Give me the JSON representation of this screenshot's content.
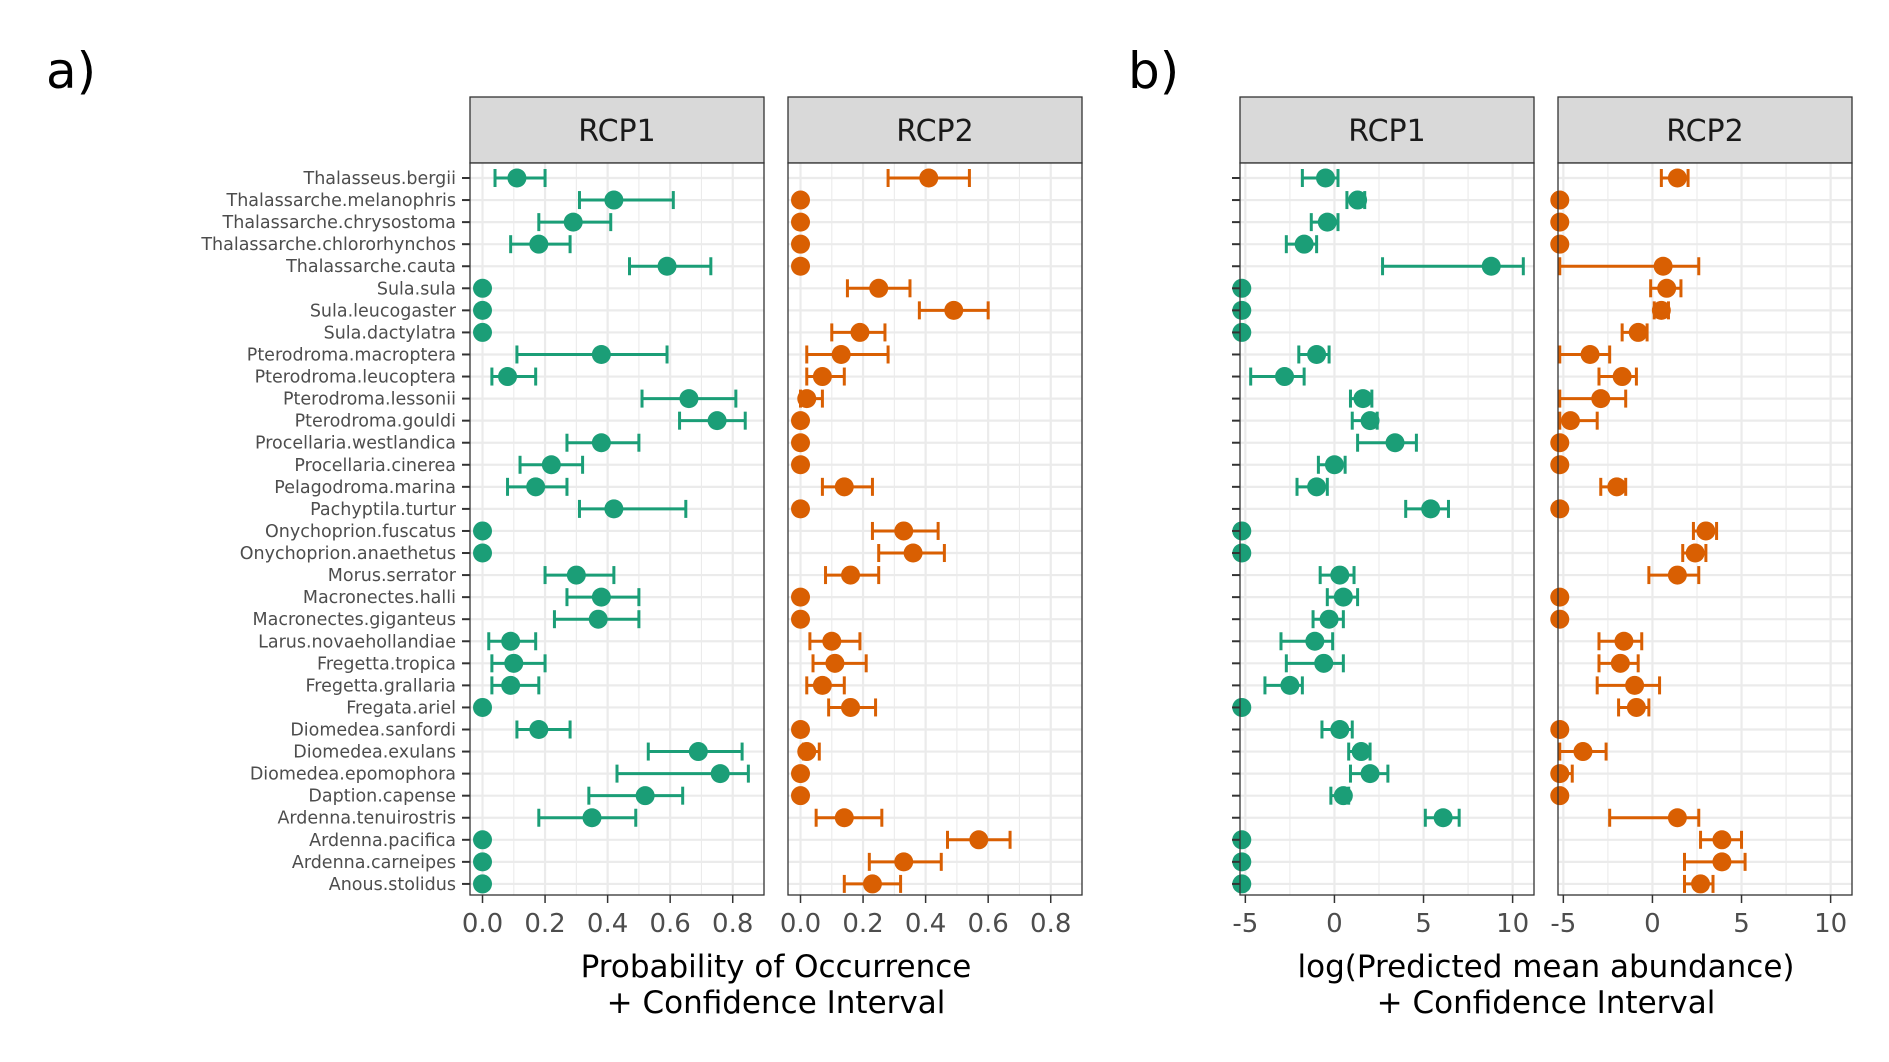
{
  "panel_labels": {
    "a": "a)",
    "b": "b)"
  },
  "colors": {
    "rcp1": "#1b9e77",
    "rcp2": "#d95f02",
    "strip_fill": "#d9d9d9",
    "grid": "#ebebeb"
  },
  "chart_data": [
    {
      "type": "dot-errorbar",
      "panel": "a)",
      "xlabel": [
        "Probability of Occurrence",
        "+ Confidence Interval"
      ],
      "xlim": [
        -0.04,
        0.9
      ],
      "xticks": [
        0,
        0.2,
        0.4,
        0.6,
        0.8
      ],
      "xtick_labels": [
        "0.0",
        "0.2",
        "0.4",
        "0.6",
        "0.8"
      ],
      "species": [
        "Thalasseus.bergii",
        "Thalassarche.melanophris",
        "Thalassarche.chrysostoma",
        "Thalassarche.chlororhynchos",
        "Thalassarche.cauta",
        "Sula.sula",
        "Sula.leucogaster",
        "Sula.dactylatra",
        "Pterodroma.macroptera",
        "Pterodroma.leucoptera",
        "Pterodroma.lessonii",
        "Pterodroma.gouldi",
        "Procellaria.westlandica",
        "Procellaria.cinerea",
        "Pelagodroma.marina",
        "Pachyptila.turtur",
        "Onychoprion.fuscatus",
        "Onychoprion.anaethetus",
        "Morus.serrator",
        "Macronectes.halli",
        "Macronectes.giganteus",
        "Larus.novaehollandiae",
        "Fregetta.tropica",
        "Fregetta.grallaria",
        "Fregata.ariel",
        "Diomedea.sanfordi",
        "Diomedea.exulans",
        "Diomedea.epomophora",
        "Daption.capense",
        "Ardenna.tenuirostris",
        "Ardenna.pacifica",
        "Ardenna.carneipes",
        "Anous.stolidus"
      ],
      "facets": [
        {
          "name": "RCP1",
          "color": "#1b9e77",
          "points": [
            {
              "est": 0.11,
              "lo": 0.04,
              "hi": 0.2
            },
            {
              "est": 0.42,
              "lo": 0.31,
              "hi": 0.61
            },
            {
              "est": 0.29,
              "lo": 0.18,
              "hi": 0.41
            },
            {
              "est": 0.18,
              "lo": 0.09,
              "hi": 0.28
            },
            {
              "est": 0.59,
              "lo": 0.47,
              "hi": 0.73
            },
            {
              "est": 0.0,
              "lo": null,
              "hi": null
            },
            {
              "est": 0.0,
              "lo": null,
              "hi": null
            },
            {
              "est": 0.0,
              "lo": null,
              "hi": null
            },
            {
              "est": 0.38,
              "lo": 0.11,
              "hi": 0.59
            },
            {
              "est": 0.08,
              "lo": 0.03,
              "hi": 0.17
            },
            {
              "est": 0.66,
              "lo": 0.51,
              "hi": 0.81
            },
            {
              "est": 0.75,
              "lo": 0.63,
              "hi": 0.84
            },
            {
              "est": 0.38,
              "lo": 0.27,
              "hi": 0.5
            },
            {
              "est": 0.22,
              "lo": 0.12,
              "hi": 0.32
            },
            {
              "est": 0.17,
              "lo": 0.08,
              "hi": 0.27
            },
            {
              "est": 0.42,
              "lo": 0.31,
              "hi": 0.65
            },
            {
              "est": 0.0,
              "lo": null,
              "hi": null
            },
            {
              "est": 0.0,
              "lo": null,
              "hi": null
            },
            {
              "est": 0.3,
              "lo": 0.2,
              "hi": 0.42
            },
            {
              "est": 0.38,
              "lo": 0.27,
              "hi": 0.5
            },
            {
              "est": 0.37,
              "lo": 0.23,
              "hi": 0.5
            },
            {
              "est": 0.09,
              "lo": 0.02,
              "hi": 0.17
            },
            {
              "est": 0.1,
              "lo": 0.03,
              "hi": 0.2
            },
            {
              "est": 0.09,
              "lo": 0.03,
              "hi": 0.18
            },
            {
              "est": 0.0,
              "lo": null,
              "hi": null
            },
            {
              "est": 0.18,
              "lo": 0.11,
              "hi": 0.28
            },
            {
              "est": 0.69,
              "lo": 0.53,
              "hi": 0.83
            },
            {
              "est": 0.76,
              "lo": 0.43,
              "hi": 0.85
            },
            {
              "est": 0.52,
              "lo": 0.34,
              "hi": 0.64
            },
            {
              "est": 0.35,
              "lo": 0.18,
              "hi": 0.49
            },
            {
              "est": 0.0,
              "lo": null,
              "hi": null
            },
            {
              "est": 0.0,
              "lo": null,
              "hi": null
            },
            {
              "est": 0.0,
              "lo": null,
              "hi": null
            }
          ]
        },
        {
          "name": "RCP2",
          "color": "#d95f02",
          "points": [
            {
              "est": 0.41,
              "lo": 0.28,
              "hi": 0.54
            },
            {
              "est": 0.0,
              "lo": null,
              "hi": null
            },
            {
              "est": 0.0,
              "lo": null,
              "hi": null
            },
            {
              "est": 0.0,
              "lo": null,
              "hi": null
            },
            {
              "est": 0.0,
              "lo": null,
              "hi": null
            },
            {
              "est": 0.25,
              "lo": 0.15,
              "hi": 0.35
            },
            {
              "est": 0.49,
              "lo": 0.38,
              "hi": 0.6
            },
            {
              "est": 0.19,
              "lo": 0.1,
              "hi": 0.27
            },
            {
              "est": 0.13,
              "lo": 0.02,
              "hi": 0.28
            },
            {
              "est": 0.07,
              "lo": 0.02,
              "hi": 0.14
            },
            {
              "est": 0.02,
              "lo": 0.0,
              "hi": 0.07
            },
            {
              "est": 0.0,
              "lo": null,
              "hi": null
            },
            {
              "est": 0.0,
              "lo": null,
              "hi": null
            },
            {
              "est": 0.0,
              "lo": null,
              "hi": null
            },
            {
              "est": 0.14,
              "lo": 0.07,
              "hi": 0.23
            },
            {
              "est": 0.0,
              "lo": null,
              "hi": null
            },
            {
              "est": 0.33,
              "lo": 0.23,
              "hi": 0.44
            },
            {
              "est": 0.36,
              "lo": 0.25,
              "hi": 0.46
            },
            {
              "est": 0.16,
              "lo": 0.08,
              "hi": 0.25
            },
            {
              "est": 0.0,
              "lo": null,
              "hi": null
            },
            {
              "est": 0.0,
              "lo": null,
              "hi": null
            },
            {
              "est": 0.1,
              "lo": 0.03,
              "hi": 0.19
            },
            {
              "est": 0.11,
              "lo": 0.04,
              "hi": 0.21
            },
            {
              "est": 0.07,
              "lo": 0.02,
              "hi": 0.14
            },
            {
              "est": 0.16,
              "lo": 0.09,
              "hi": 0.24
            },
            {
              "est": 0.0,
              "lo": null,
              "hi": null
            },
            {
              "est": 0.02,
              "lo": 0.01,
              "hi": 0.06
            },
            {
              "est": 0.0,
              "lo": null,
              "hi": null
            },
            {
              "est": 0.0,
              "lo": null,
              "hi": null
            },
            {
              "est": 0.14,
              "lo": 0.05,
              "hi": 0.26
            },
            {
              "est": 0.57,
              "lo": 0.47,
              "hi": 0.67
            },
            {
              "est": 0.33,
              "lo": 0.22,
              "hi": 0.45
            },
            {
              "est": 0.23,
              "lo": 0.14,
              "hi": 0.32
            }
          ]
        }
      ]
    },
    {
      "type": "dot-errorbar",
      "panel": "b)",
      "xlabel": [
        "log(Predicted mean abundance)",
        "+ Confidence Interval"
      ],
      "xlim": [
        -5.3,
        11.2
      ],
      "xticks": [
        -5,
        0,
        5,
        10
      ],
      "xtick_labels": [
        "-5",
        "0",
        "5",
        "10"
      ],
      "facets": [
        {
          "name": "RCP1",
          "color": "#1b9e77",
          "points": [
            {
              "est": -0.5,
              "lo": -1.8,
              "hi": 0.2
            },
            {
              "est": 1.3,
              "lo": 0.7,
              "hi": 1.7
            },
            {
              "est": -0.4,
              "lo": -1.3,
              "hi": 0.2
            },
            {
              "est": -1.7,
              "lo": -2.7,
              "hi": -1.0
            },
            {
              "est": 8.8,
              "lo": 2.7,
              "hi": 10.6
            },
            {
              "est": -5.2,
              "lo": null,
              "hi": null
            },
            {
              "est": -5.2,
              "lo": null,
              "hi": null
            },
            {
              "est": -5.2,
              "lo": null,
              "hi": null
            },
            {
              "est": -1.0,
              "lo": -2.0,
              "hi": -0.3
            },
            {
              "est": -2.8,
              "lo": -4.7,
              "hi": -1.7
            },
            {
              "est": 1.6,
              "lo": 0.9,
              "hi": 2.1
            },
            {
              "est": 2.0,
              "lo": 1.0,
              "hi": 2.4
            },
            {
              "est": 3.4,
              "lo": 1.3,
              "hi": 4.6
            },
            {
              "est": 0.0,
              "lo": -0.9,
              "hi": 0.6
            },
            {
              "est": -1.0,
              "lo": -2.1,
              "hi": -0.4
            },
            {
              "est": 5.4,
              "lo": 4.0,
              "hi": 6.4
            },
            {
              "est": -5.2,
              "lo": null,
              "hi": null
            },
            {
              "est": -5.2,
              "lo": null,
              "hi": null
            },
            {
              "est": 0.3,
              "lo": -0.8,
              "hi": 1.1
            },
            {
              "est": 0.5,
              "lo": -0.4,
              "hi": 1.3
            },
            {
              "est": -0.3,
              "lo": -1.2,
              "hi": 0.5
            },
            {
              "est": -1.1,
              "lo": -3.0,
              "hi": -0.1
            },
            {
              "est": -0.6,
              "lo": -2.7,
              "hi": 0.5
            },
            {
              "est": -2.5,
              "lo": -3.9,
              "hi": -1.8
            },
            {
              "est": -5.2,
              "lo": null,
              "hi": null
            },
            {
              "est": 0.3,
              "lo": -0.7,
              "hi": 1.0
            },
            {
              "est": 1.5,
              "lo": 0.8,
              "hi": 2.0
            },
            {
              "est": 2.0,
              "lo": 0.9,
              "hi": 3.0
            },
            {
              "est": 0.5,
              "lo": -0.2,
              "hi": 0.8
            },
            {
              "est": 6.1,
              "lo": 5.1,
              "hi": 7.0
            },
            {
              "est": -5.2,
              "lo": null,
              "hi": null
            },
            {
              "est": -5.2,
              "lo": null,
              "hi": null
            },
            {
              "est": -5.2,
              "lo": null,
              "hi": null
            }
          ]
        },
        {
          "name": "RCP2",
          "color": "#d95f02",
          "points": [
            {
              "est": 1.4,
              "lo": 0.5,
              "hi": 2.0
            },
            {
              "est": -5.2,
              "lo": null,
              "hi": null
            },
            {
              "est": -5.2,
              "lo": null,
              "hi": null
            },
            {
              "est": -5.2,
              "lo": null,
              "hi": null
            },
            {
              "est": 0.6,
              "lo": -5.2,
              "hi": 2.6
            },
            {
              "est": 0.8,
              "lo": -0.1,
              "hi": 1.6
            },
            {
              "est": 0.5,
              "lo": 0.1,
              "hi": 0.9
            },
            {
              "est": -0.8,
              "lo": -1.7,
              "hi": -0.3
            },
            {
              "est": -3.5,
              "lo": -5.2,
              "hi": -2.4
            },
            {
              "est": -1.7,
              "lo": -3.0,
              "hi": -0.9
            },
            {
              "est": -2.9,
              "lo": -5.2,
              "hi": -1.5
            },
            {
              "est": -4.6,
              "lo": -5.2,
              "hi": -3.1
            },
            {
              "est": -5.2,
              "lo": null,
              "hi": null
            },
            {
              "est": -5.2,
              "lo": null,
              "hi": null
            },
            {
              "est": -2.0,
              "lo": -2.9,
              "hi": -1.5
            },
            {
              "est": -5.2,
              "lo": null,
              "hi": null
            },
            {
              "est": 3.0,
              "lo": 2.3,
              "hi": 3.6
            },
            {
              "est": 2.4,
              "lo": 1.7,
              "hi": 3.0
            },
            {
              "est": 1.4,
              "lo": -0.2,
              "hi": 2.6
            },
            {
              "est": -5.2,
              "lo": null,
              "hi": null
            },
            {
              "est": -5.2,
              "lo": null,
              "hi": null
            },
            {
              "est": -1.6,
              "lo": -3.0,
              "hi": -0.6
            },
            {
              "est": -1.8,
              "lo": -3.0,
              "hi": -0.8
            },
            {
              "est": -1.0,
              "lo": -3.1,
              "hi": 0.4
            },
            {
              "est": -0.9,
              "lo": -1.9,
              "hi": -0.2
            },
            {
              "est": -5.2,
              "lo": null,
              "hi": null
            },
            {
              "est": -3.9,
              "lo": -5.2,
              "hi": -2.6
            },
            {
              "est": -5.2,
              "lo": null,
              "hi": -4.5
            },
            {
              "est": -5.2,
              "lo": null,
              "hi": null
            },
            {
              "est": 1.4,
              "lo": -2.4,
              "hi": 2.6
            },
            {
              "est": 3.9,
              "lo": 2.7,
              "hi": 5.0
            },
            {
              "est": 3.9,
              "lo": 1.8,
              "hi": 5.2
            },
            {
              "est": 2.7,
              "lo": 1.8,
              "hi": 3.4
            }
          ]
        }
      ]
    }
  ]
}
